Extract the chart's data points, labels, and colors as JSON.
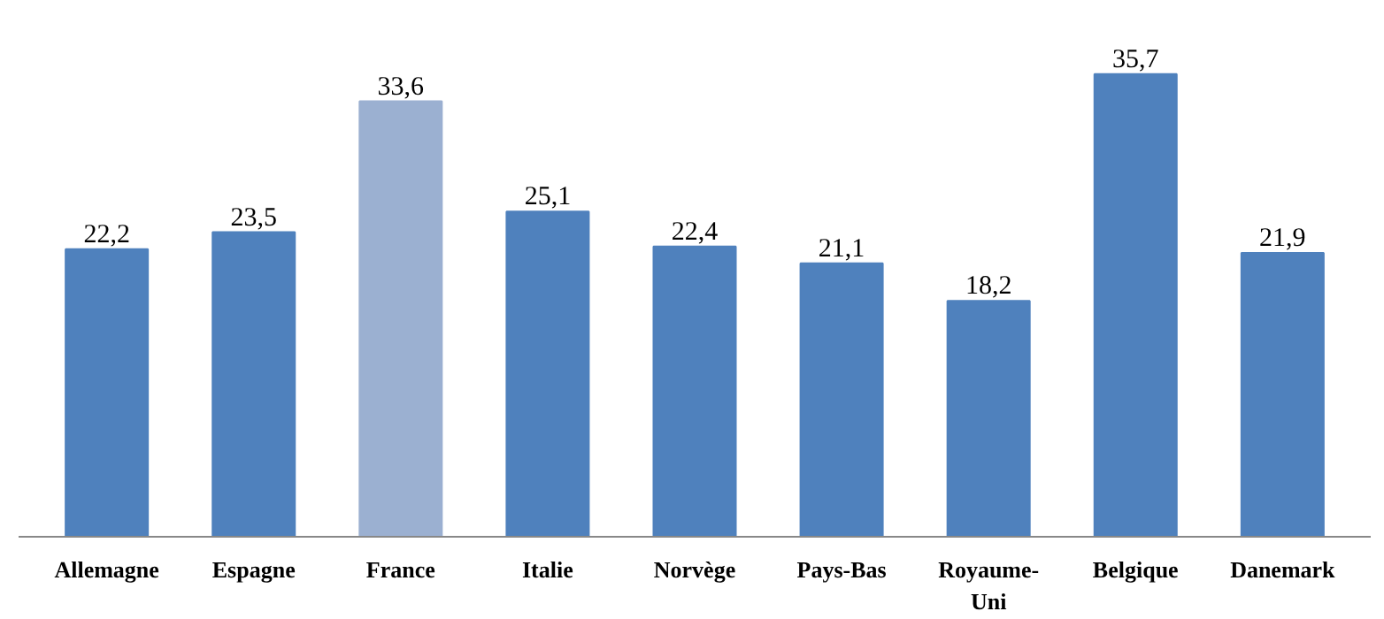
{
  "chart_data": {
    "type": "bar",
    "categories": [
      "Allemagne",
      "Espagne",
      "France",
      "Italie",
      "Norvège",
      "Pays-Bas",
      "Royaume-Uni",
      "Belgique",
      "Danemark"
    ],
    "values": [
      22.2,
      23.5,
      33.6,
      25.1,
      22.4,
      21.1,
      18.2,
      35.7,
      21.9
    ],
    "colors": [
      "#4f81bd",
      "#4f81bd",
      "#9bb0d1",
      "#4f81bd",
      "#4f81bd",
      "#4f81bd",
      "#4f81bd",
      "#4f81bd",
      "#4f81bd"
    ],
    "value_labels": [
      "22,2",
      "23,5",
      "33,6",
      "25,1",
      "22,4",
      "21,1",
      "18,2",
      "35,7",
      "21,9"
    ],
    "grid": false
  }
}
